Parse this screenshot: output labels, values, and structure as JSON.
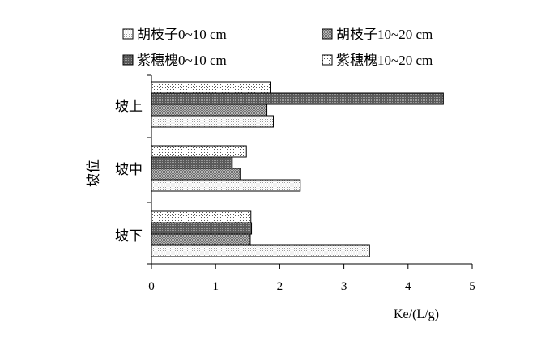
{
  "chart_data": {
    "type": "bar",
    "orientation": "horizontal",
    "ylabel": "坡位",
    "xlabel": "Ke/(L/g)",
    "xlim": [
      0,
      5
    ],
    "xticks": [
      "0",
      "1",
      "2",
      "3",
      "4",
      "5"
    ],
    "categories": [
      "坡上",
      "坡中",
      "坡下"
    ],
    "legend_position": "top",
    "grid": false,
    "series": [
      {
        "name": "胡枝子0~10 cm",
        "pattern": "light-dots",
        "values": [
          1.9,
          2.32,
          3.4
        ]
      },
      {
        "name": "紫穗槐0~10 cm",
        "pattern": "dark-dots",
        "values": [
          4.55,
          1.26,
          1.56
        ]
      },
      {
        "name": "胡枝子10~20 cm",
        "pattern": "grey-check",
        "values": [
          1.8,
          1.38,
          1.54
        ]
      },
      {
        "name": "紫穗槐10~20 cm",
        "pattern": "sparse-dots",
        "values": [
          1.85,
          1.48,
          1.55
        ]
      }
    ],
    "legend_order": [
      0,
      2,
      1,
      3
    ]
  }
}
